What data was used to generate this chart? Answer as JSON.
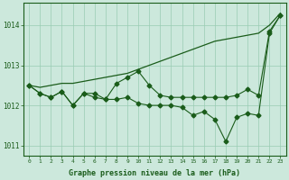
{
  "x": [
    0,
    1,
    2,
    3,
    4,
    5,
    6,
    7,
    8,
    9,
    10,
    11,
    12,
    13,
    14,
    15,
    16,
    17,
    18,
    19,
    20,
    21,
    22,
    23
  ],
  "line1": [
    1012.5,
    1012.45,
    1012.5,
    1012.55,
    1012.55,
    1012.6,
    1012.65,
    1012.7,
    1012.75,
    1012.8,
    1012.9,
    1013.0,
    1013.1,
    1013.2,
    1013.3,
    1013.4,
    1013.5,
    1013.6,
    1013.65,
    1013.7,
    1013.75,
    1013.8,
    1014.0,
    1014.3
  ],
  "line2": [
    1012.5,
    1012.3,
    1012.2,
    1012.35,
    1012.0,
    1012.3,
    1012.3,
    1012.15,
    1012.55,
    1012.7,
    1012.85,
    1012.5,
    1012.25,
    1012.2,
    1012.2,
    1012.2,
    1012.2,
    1012.2,
    1012.2,
    1012.25,
    1012.4,
    1012.25,
    1013.85,
    1014.25
  ],
  "line3": [
    1012.5,
    1012.3,
    1012.2,
    1012.35,
    1012.0,
    1012.3,
    1012.2,
    1012.15,
    1012.15,
    1012.2,
    1012.05,
    1012.0,
    1012.0,
    1012.0,
    1011.95,
    1011.75,
    1011.85,
    1011.65,
    1011.1,
    1011.7,
    1011.8,
    1011.75,
    1013.8,
    1014.25
  ],
  "ylim": [
    1010.75,
    1014.55
  ],
  "yticks": [
    1011,
    1012,
    1013,
    1014
  ],
  "xticks": [
    0,
    1,
    2,
    3,
    4,
    5,
    6,
    7,
    8,
    9,
    10,
    11,
    12,
    13,
    14,
    15,
    16,
    17,
    18,
    19,
    20,
    21,
    22,
    23
  ],
  "xlabel": "Graphe pression niveau de la mer (hPa)",
  "line_color": "#1a5c1a",
  "bg_color": "#cce8dc",
  "grid_color": "#99ccb3"
}
